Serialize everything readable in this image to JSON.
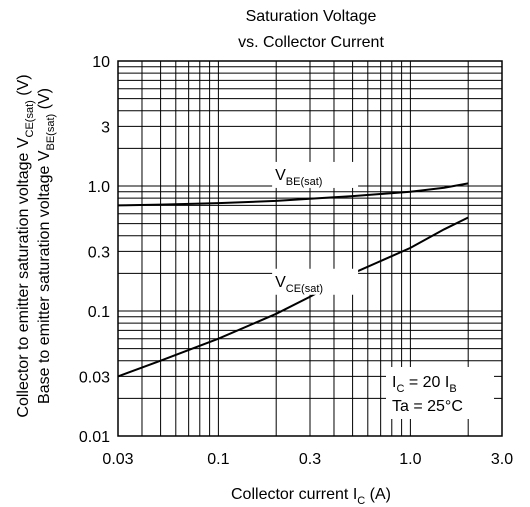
{
  "chart_data": {
    "type": "line",
    "title_line1": "Saturation Voltage",
    "title_line2": "vs. Collector Current",
    "x_scale": "log",
    "y_scale": "log",
    "xlim": [
      0.03,
      3.0
    ],
    "ylim": [
      0.01,
      10
    ],
    "grid": true,
    "x_ticks": [
      {
        "value": 0.03,
        "label": "0.03"
      },
      {
        "value": 0.1,
        "label": "0.1"
      },
      {
        "value": 0.3,
        "label": "0.3"
      },
      {
        "value": 1.0,
        "label": "1.0"
      },
      {
        "value": 3.0,
        "label": "3.0"
      }
    ],
    "y_ticks": [
      {
        "value": 0.01,
        "label": "0.01"
      },
      {
        "value": 0.03,
        "label": "0.03"
      },
      {
        "value": 0.1,
        "label": "0.1"
      },
      {
        "value": 0.3,
        "label": "0.3"
      },
      {
        "value": 1.0,
        "label": "1.0"
      },
      {
        "value": 3,
        "label": "3"
      },
      {
        "value": 10,
        "label": "10"
      }
    ],
    "xlabel": {
      "main": "Collector current  I",
      "sub": "C",
      "unit": "  (A)"
    },
    "ylabel_line1": {
      "main": "Collector to emitter saturation voltage  V",
      "sub": "CE(sat)",
      "unit": " (V)"
    },
    "ylabel_line2": {
      "main": "Base to emitter saturation voltage  V",
      "sub": "BE(sat)",
      "unit": "  (V)"
    },
    "series": [
      {
        "name": "V BE(sat)",
        "label_main": "V",
        "label_sub": "BE(sat)",
        "x": [
          0.03,
          0.05,
          0.1,
          0.2,
          0.3,
          0.5,
          1.0,
          1.5,
          2.0
        ],
        "y": [
          0.7,
          0.71,
          0.73,
          0.76,
          0.79,
          0.83,
          0.9,
          0.97,
          1.05
        ]
      },
      {
        "name": "V CE(sat)",
        "label_main": "V",
        "label_sub": "CE(sat)",
        "x": [
          0.03,
          0.05,
          0.1,
          0.2,
          0.3,
          0.5,
          1.0,
          1.5,
          2.0
        ],
        "y": [
          0.03,
          0.04,
          0.06,
          0.095,
          0.13,
          0.2,
          0.32,
          0.45,
          0.56
        ]
      }
    ],
    "conditions": [
      {
        "main": "I",
        "sub": "C",
        "rest": " = 20 I",
        "sub2": "B"
      },
      {
        "main": "Ta = 25°C",
        "sub": "",
        "rest": "",
        "sub2": ""
      }
    ]
  }
}
